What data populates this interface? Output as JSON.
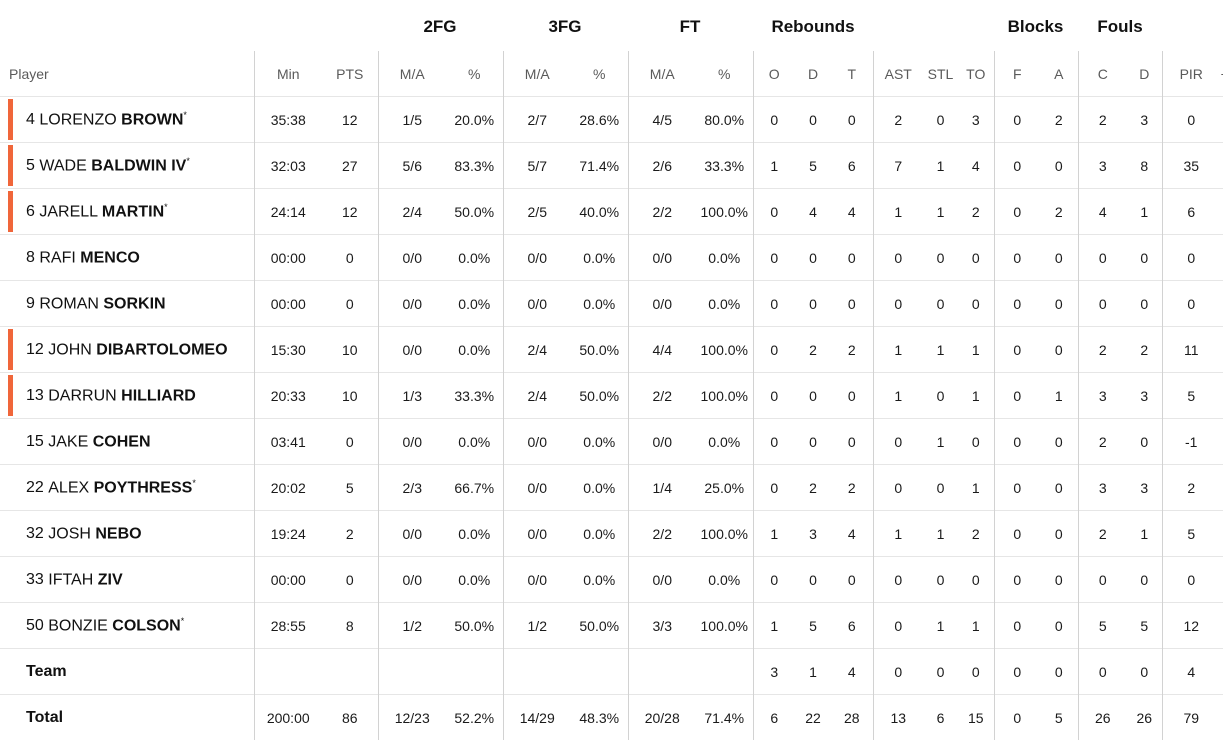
{
  "group_headers": {
    "fg2": "2FG",
    "fg3": "3FG",
    "ft": "FT",
    "rebounds": "Rebounds",
    "blocks": "Blocks",
    "fouls": "Fouls"
  },
  "columns": {
    "player": "Player",
    "min": "Min",
    "pts": "PTS",
    "fg2_ma": "M/A",
    "fg2_pct": "%",
    "fg3_ma": "M/A",
    "fg3_pct": "%",
    "ft_ma": "M/A",
    "ft_pct": "%",
    "reb_o": "O",
    "reb_d": "D",
    "reb_t": "T",
    "ast": "AST",
    "stl": "STL",
    "to": "TO",
    "blk_f": "F",
    "blk_a": "A",
    "foul_c": "C",
    "foul_d": "D",
    "pir": "PIR",
    "pm": "+/-"
  },
  "accent_color": "#f0663a",
  "players": [
    {
      "num": "4",
      "first": "LORENZO",
      "last": "BROWN",
      "star": "*",
      "starter": true,
      "min": "35:38",
      "pts": "12",
      "fg2_ma": "1/5",
      "fg2_pct": "20.0%",
      "fg3_ma": "2/7",
      "fg3_pct": "28.6%",
      "ft_ma": "4/5",
      "ft_pct": "80.0%",
      "reb_o": "0",
      "reb_d": "0",
      "reb_t": "0",
      "ast": "2",
      "stl": "0",
      "to": "3",
      "blk_f": "0",
      "blk_a": "2",
      "foul_c": "2",
      "foul_d": "3",
      "pir": "0"
    },
    {
      "num": "5",
      "first": "WADE",
      "last": "BALDWIN IV",
      "star": "*",
      "starter": true,
      "min": "32:03",
      "pts": "27",
      "fg2_ma": "5/6",
      "fg2_pct": "83.3%",
      "fg3_ma": "5/7",
      "fg3_pct": "71.4%",
      "ft_ma": "2/6",
      "ft_pct": "33.3%",
      "reb_o": "1",
      "reb_d": "5",
      "reb_t": "6",
      "ast": "7",
      "stl": "1",
      "to": "4",
      "blk_f": "0",
      "blk_a": "0",
      "foul_c": "3",
      "foul_d": "8",
      "pir": "35"
    },
    {
      "num": "6",
      "first": "JARELL",
      "last": "MARTIN",
      "star": "*",
      "starter": true,
      "min": "24:14",
      "pts": "12",
      "fg2_ma": "2/4",
      "fg2_pct": "50.0%",
      "fg3_ma": "2/5",
      "fg3_pct": "40.0%",
      "ft_ma": "2/2",
      "ft_pct": "100.0%",
      "reb_o": "0",
      "reb_d": "4",
      "reb_t": "4",
      "ast": "1",
      "stl": "1",
      "to": "2",
      "blk_f": "0",
      "blk_a": "2",
      "foul_c": "4",
      "foul_d": "1",
      "pir": "6"
    },
    {
      "num": "8",
      "first": "RAFI",
      "last": "MENCO",
      "star": "",
      "starter": false,
      "min": "00:00",
      "pts": "0",
      "fg2_ma": "0/0",
      "fg2_pct": "0.0%",
      "fg3_ma": "0/0",
      "fg3_pct": "0.0%",
      "ft_ma": "0/0",
      "ft_pct": "0.0%",
      "reb_o": "0",
      "reb_d": "0",
      "reb_t": "0",
      "ast": "0",
      "stl": "0",
      "to": "0",
      "blk_f": "0",
      "blk_a": "0",
      "foul_c": "0",
      "foul_d": "0",
      "pir": "0"
    },
    {
      "num": "9",
      "first": "ROMAN",
      "last": "SORKIN",
      "star": "",
      "starter": false,
      "min": "00:00",
      "pts": "0",
      "fg2_ma": "0/0",
      "fg2_pct": "0.0%",
      "fg3_ma": "0/0",
      "fg3_pct": "0.0%",
      "ft_ma": "0/0",
      "ft_pct": "0.0%",
      "reb_o": "0",
      "reb_d": "0",
      "reb_t": "0",
      "ast": "0",
      "stl": "0",
      "to": "0",
      "blk_f": "0",
      "blk_a": "0",
      "foul_c": "0",
      "foul_d": "0",
      "pir": "0"
    },
    {
      "num": "12",
      "first": "JOHN",
      "last": "DIBARTOLOMEO",
      "star": "",
      "starter": true,
      "min": "15:30",
      "pts": "10",
      "fg2_ma": "0/0",
      "fg2_pct": "0.0%",
      "fg3_ma": "2/4",
      "fg3_pct": "50.0%",
      "ft_ma": "4/4",
      "ft_pct": "100.0%",
      "reb_o": "0",
      "reb_d": "2",
      "reb_t": "2",
      "ast": "1",
      "stl": "1",
      "to": "1",
      "blk_f": "0",
      "blk_a": "0",
      "foul_c": "2",
      "foul_d": "2",
      "pir": "11"
    },
    {
      "num": "13",
      "first": "DARRUN",
      "last": "HILLIARD",
      "star": "",
      "starter": true,
      "min": "20:33",
      "pts": "10",
      "fg2_ma": "1/3",
      "fg2_pct": "33.3%",
      "fg3_ma": "2/4",
      "fg3_pct": "50.0%",
      "ft_ma": "2/2",
      "ft_pct": "100.0%",
      "reb_o": "0",
      "reb_d": "0",
      "reb_t": "0",
      "ast": "1",
      "stl": "0",
      "to": "1",
      "blk_f": "0",
      "blk_a": "1",
      "foul_c": "3",
      "foul_d": "3",
      "pir": "5"
    },
    {
      "num": "15",
      "first": "JAKE",
      "last": "COHEN",
      "star": "",
      "starter": false,
      "min": "03:41",
      "pts": "0",
      "fg2_ma": "0/0",
      "fg2_pct": "0.0%",
      "fg3_ma": "0/0",
      "fg3_pct": "0.0%",
      "ft_ma": "0/0",
      "ft_pct": "0.0%",
      "reb_o": "0",
      "reb_d": "0",
      "reb_t": "0",
      "ast": "0",
      "stl": "1",
      "to": "0",
      "blk_f": "0",
      "blk_a": "0",
      "foul_c": "2",
      "foul_d": "0",
      "pir": "-1"
    },
    {
      "num": "22",
      "first": "ALEX",
      "last": "POYTHRESS",
      "star": "*",
      "starter": false,
      "min": "20:02",
      "pts": "5",
      "fg2_ma": "2/3",
      "fg2_pct": "66.7%",
      "fg3_ma": "0/0",
      "fg3_pct": "0.0%",
      "ft_ma": "1/4",
      "ft_pct": "25.0%",
      "reb_o": "0",
      "reb_d": "2",
      "reb_t": "2",
      "ast": "0",
      "stl": "0",
      "to": "1",
      "blk_f": "0",
      "blk_a": "0",
      "foul_c": "3",
      "foul_d": "3",
      "pir": "2"
    },
    {
      "num": "32",
      "first": "JOSH",
      "last": "NEBO",
      "star": "",
      "starter": false,
      "min": "19:24",
      "pts": "2",
      "fg2_ma": "0/0",
      "fg2_pct": "0.0%",
      "fg3_ma": "0/0",
      "fg3_pct": "0.0%",
      "ft_ma": "2/2",
      "ft_pct": "100.0%",
      "reb_o": "1",
      "reb_d": "3",
      "reb_t": "4",
      "ast": "1",
      "stl": "1",
      "to": "2",
      "blk_f": "0",
      "blk_a": "0",
      "foul_c": "2",
      "foul_d": "1",
      "pir": "5"
    },
    {
      "num": "33",
      "first": "IFTAH",
      "last": "ZIV",
      "star": "",
      "starter": false,
      "min": "00:00",
      "pts": "0",
      "fg2_ma": "0/0",
      "fg2_pct": "0.0%",
      "fg3_ma": "0/0",
      "fg3_pct": "0.0%",
      "ft_ma": "0/0",
      "ft_pct": "0.0%",
      "reb_o": "0",
      "reb_d": "0",
      "reb_t": "0",
      "ast": "0",
      "stl": "0",
      "to": "0",
      "blk_f": "0",
      "blk_a": "0",
      "foul_c": "0",
      "foul_d": "0",
      "pir": "0"
    },
    {
      "num": "50",
      "first": "BONZIE",
      "last": "COLSON",
      "star": "*",
      "starter": false,
      "min": "28:55",
      "pts": "8",
      "fg2_ma": "1/2",
      "fg2_pct": "50.0%",
      "fg3_ma": "1/2",
      "fg3_pct": "50.0%",
      "ft_ma": "3/3",
      "ft_pct": "100.0%",
      "reb_o": "1",
      "reb_d": "5",
      "reb_t": "6",
      "ast": "0",
      "stl": "1",
      "to": "1",
      "blk_f": "0",
      "blk_a": "0",
      "foul_c": "5",
      "foul_d": "5",
      "pir": "12"
    }
  ],
  "team": {
    "label": "Team",
    "min": "",
    "pts": "",
    "fg2_ma": "",
    "fg2_pct": "",
    "fg3_ma": "",
    "fg3_pct": "",
    "ft_ma": "",
    "ft_pct": "",
    "reb_o": "3",
    "reb_d": "1",
    "reb_t": "4",
    "ast": "0",
    "stl": "0",
    "to": "0",
    "blk_f": "0",
    "blk_a": "0",
    "foul_c": "0",
    "foul_d": "0",
    "pir": "4"
  },
  "total": {
    "label": "Total",
    "min": "200:00",
    "pts": "86",
    "fg2_ma": "12/23",
    "fg2_pct": "52.2%",
    "fg3_ma": "14/29",
    "fg3_pct": "48.3%",
    "ft_ma": "20/28",
    "ft_pct": "71.4%",
    "reb_o": "6",
    "reb_d": "22",
    "reb_t": "28",
    "ast": "13",
    "stl": "6",
    "to": "15",
    "blk_f": "0",
    "blk_a": "5",
    "foul_c": "26",
    "foul_d": "26",
    "pir": "79"
  }
}
